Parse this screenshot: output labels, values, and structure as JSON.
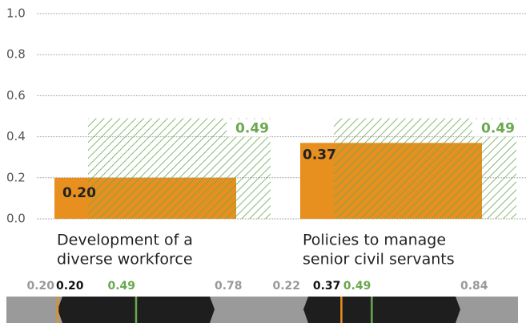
{
  "chart_data": {
    "type": "bar",
    "categories": [
      [
        "Development of a",
        "diverse workforce"
      ],
      [
        "Policies to manage",
        "senior civil servants"
      ]
    ],
    "series": [
      {
        "color": "#e8901f",
        "values": [
          0.2,
          0.37
        ],
        "value_labels": [
          "0.20",
          "0.37"
        ]
      },
      {
        "color": "#6aa84f",
        "values": [
          0.49,
          0.49
        ],
        "value_labels": [
          "0.49",
          "0.49"
        ],
        "hatched": true
      }
    ],
    "ranges": [
      {
        "min": 0.2,
        "min_label": "0.20",
        "max": 0.78,
        "max_label": "0.78"
      },
      {
        "min": 0.22,
        "min_label": "0.22",
        "max": 0.84,
        "max_label": "0.84"
      }
    ],
    "ylim": [
      0,
      1
    ],
    "yticks": [
      {
        "value": 0,
        "label": "0.0"
      },
      {
        "value": 0.2,
        "label": "0.2"
      },
      {
        "value": 0.4,
        "label": "0.4"
      },
      {
        "value": 0.6,
        "label": "0.6"
      },
      {
        "value": 0.8,
        "label": "0.8"
      },
      {
        "value": 1,
        "label": "1.0"
      }
    ],
    "grid": true
  }
}
